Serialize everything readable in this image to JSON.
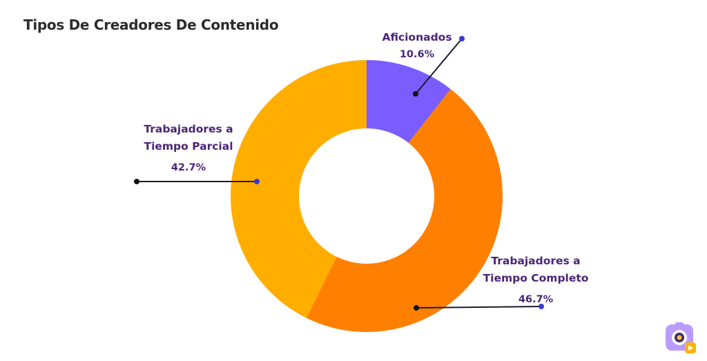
{
  "chart_data": {
    "type": "pie",
    "donut": true,
    "title": "Tipos De Creadores De Contenido",
    "slices": [
      {
        "label_lines": [
          "Aficionados"
        ],
        "value": 10.6,
        "value_label": "10.6%",
        "color": "#7b5cff"
      },
      {
        "label_lines": [
          "Trabajadores a",
          "Tiempo Completo"
        ],
        "value": 46.7,
        "value_label": "46.7%",
        "color": "#ff8000"
      },
      {
        "label_lines": [
          "Trabajadores a",
          "Tiempo Parcial"
        ],
        "value": 42.7,
        "value_label": "42.7%",
        "color": "#ffae00"
      }
    ],
    "legend": "none"
  },
  "colors": {
    "title": "#2b2b2b",
    "label_text": "#4a2576",
    "leader_line": "#1a1a2e",
    "leader_dot_outer": "#3a3ad6",
    "leader_dot_inner": "#111111"
  },
  "logo": {
    "icon": "camera-app-icon"
  }
}
